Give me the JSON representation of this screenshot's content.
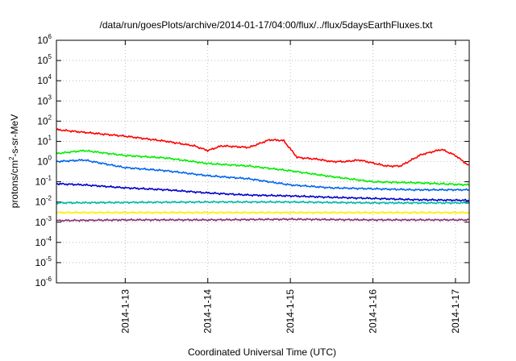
{
  "chart_data": {
    "type": "line",
    "title": "/data/run/goesPlots/archive/2014-01-17/04:00/flux/../flux/5daysEarthFluxes.txt",
    "xlabel": "Coordinated Universal Time (UTC)",
    "ylabel": "protons/cm²-s-sr-MeV",
    "ylabel_parts": {
      "pre": "protons/cm",
      "sup": "2",
      "post": "-s-sr-MeV"
    },
    "y_scale": "log",
    "ylim": [
      1e-06,
      1000000.0
    ],
    "y_ticks": [
      {
        "base": "10",
        "exp": "-6"
      },
      {
        "base": "10",
        "exp": "-5"
      },
      {
        "base": "10",
        "exp": "-4"
      },
      {
        "base": "10",
        "exp": "-3"
      },
      {
        "base": "10",
        "exp": "-2"
      },
      {
        "base": "10",
        "exp": "-1"
      },
      {
        "base": "10",
        "exp": "0"
      },
      {
        "base": "10",
        "exp": "1"
      },
      {
        "base": "10",
        "exp": "2"
      },
      {
        "base": "10",
        "exp": "3"
      },
      {
        "base": "10",
        "exp": "4"
      },
      {
        "base": "10",
        "exp": "5"
      },
      {
        "base": "10",
        "exp": "6"
      }
    ],
    "x_ticks": [
      "2014-1-13",
      "2014-1-14",
      "2014-1-15",
      "2014-1-16",
      "2014-1-17"
    ],
    "xlim": [
      "2014-01-12T04:00",
      "2014-01-17T04:00"
    ],
    "grid": true,
    "legend": "none",
    "series": [
      {
        "color": "#ff0000",
        "x": [
          "2014-01-12T04:00",
          "2014-01-12T12:00",
          "2014-01-13T00:00",
          "2014-01-13T12:00",
          "2014-01-13T20:00",
          "2014-01-14T00:00",
          "2014-01-14T04:00",
          "2014-01-14T12:00",
          "2014-01-14T18:00",
          "2014-01-14T22:00",
          "2014-01-15T02:00",
          "2014-01-15T08:00",
          "2014-01-15T12:00",
          "2014-01-15T16:00",
          "2014-01-15T20:00",
          "2014-01-16T04:00",
          "2014-01-16T08:00",
          "2014-01-16T14:00",
          "2014-01-16T20:00",
          "2014-01-17T00:00",
          "2014-01-17T04:00"
        ],
        "y": [
          38,
          28,
          18,
          10,
          6,
          3.5,
          6,
          5,
          12,
          11,
          1.6,
          1.3,
          1.0,
          1.0,
          1.2,
          0.6,
          0.6,
          2.2,
          4.0,
          2.0,
          0.6
        ]
      },
      {
        "color": "#00ee00",
        "x": [
          "2014-01-12T04:00",
          "2014-01-12T12:00",
          "2014-01-13T00:00",
          "2014-01-13T12:00",
          "2014-01-14T00:00",
          "2014-01-14T12:00",
          "2014-01-15T00:00",
          "2014-01-15T12:00",
          "2014-01-16T00:00",
          "2014-01-16T12:00",
          "2014-01-17T04:00"
        ],
        "y": [
          2.5,
          3.5,
          2.0,
          1.5,
          0.8,
          0.6,
          0.35,
          0.18,
          0.1,
          0.09,
          0.07
        ]
      },
      {
        "color": "#0066ee",
        "x": [
          "2014-01-12T04:00",
          "2014-01-12T12:00",
          "2014-01-13T00:00",
          "2014-01-13T12:00",
          "2014-01-14T00:00",
          "2014-01-14T12:00",
          "2014-01-15T00:00",
          "2014-01-15T12:00",
          "2014-01-16T00:00",
          "2014-01-16T12:00",
          "2014-01-17T04:00"
        ],
        "y": [
          1.0,
          1.2,
          0.5,
          0.35,
          0.2,
          0.14,
          0.07,
          0.05,
          0.045,
          0.04,
          0.04
        ]
      },
      {
        "color": "#0000cc",
        "x": [
          "2014-01-12T04:00",
          "2014-01-12T12:00",
          "2014-01-13T00:00",
          "2014-01-13T12:00",
          "2014-01-14T00:00",
          "2014-01-14T12:00",
          "2014-01-15T00:00",
          "2014-01-15T12:00",
          "2014-01-16T00:00",
          "2014-01-16T12:00",
          "2014-01-17T04:00"
        ],
        "y": [
          0.08,
          0.07,
          0.05,
          0.04,
          0.028,
          0.022,
          0.02,
          0.017,
          0.015,
          0.013,
          0.012
        ]
      },
      {
        "color": "#00b8a8",
        "x": [
          "2014-01-12T04:00",
          "2014-01-13T00:00",
          "2014-01-14T00:00",
          "2014-01-15T00:00",
          "2014-01-16T00:00",
          "2014-01-17T04:00"
        ],
        "y": [
          0.009,
          0.0095,
          0.01,
          0.01,
          0.009,
          0.009
        ]
      },
      {
        "color": "#ffee00",
        "x": [
          "2014-01-12T04:00",
          "2014-01-13T00:00",
          "2014-01-14T00:00",
          "2014-01-15T00:00",
          "2014-01-16T00:00",
          "2014-01-17T04:00"
        ],
        "y": [
          0.003,
          0.003,
          0.003,
          0.003,
          0.003,
          0.003
        ]
      },
      {
        "color": "#8b2f70",
        "x": [
          "2014-01-12T04:00",
          "2014-01-13T00:00",
          "2014-01-14T00:00",
          "2014-01-15T00:00",
          "2014-01-16T00:00",
          "2014-01-17T04:00"
        ],
        "y": [
          0.0012,
          0.0013,
          0.0013,
          0.0014,
          0.0013,
          0.0013
        ]
      }
    ]
  }
}
